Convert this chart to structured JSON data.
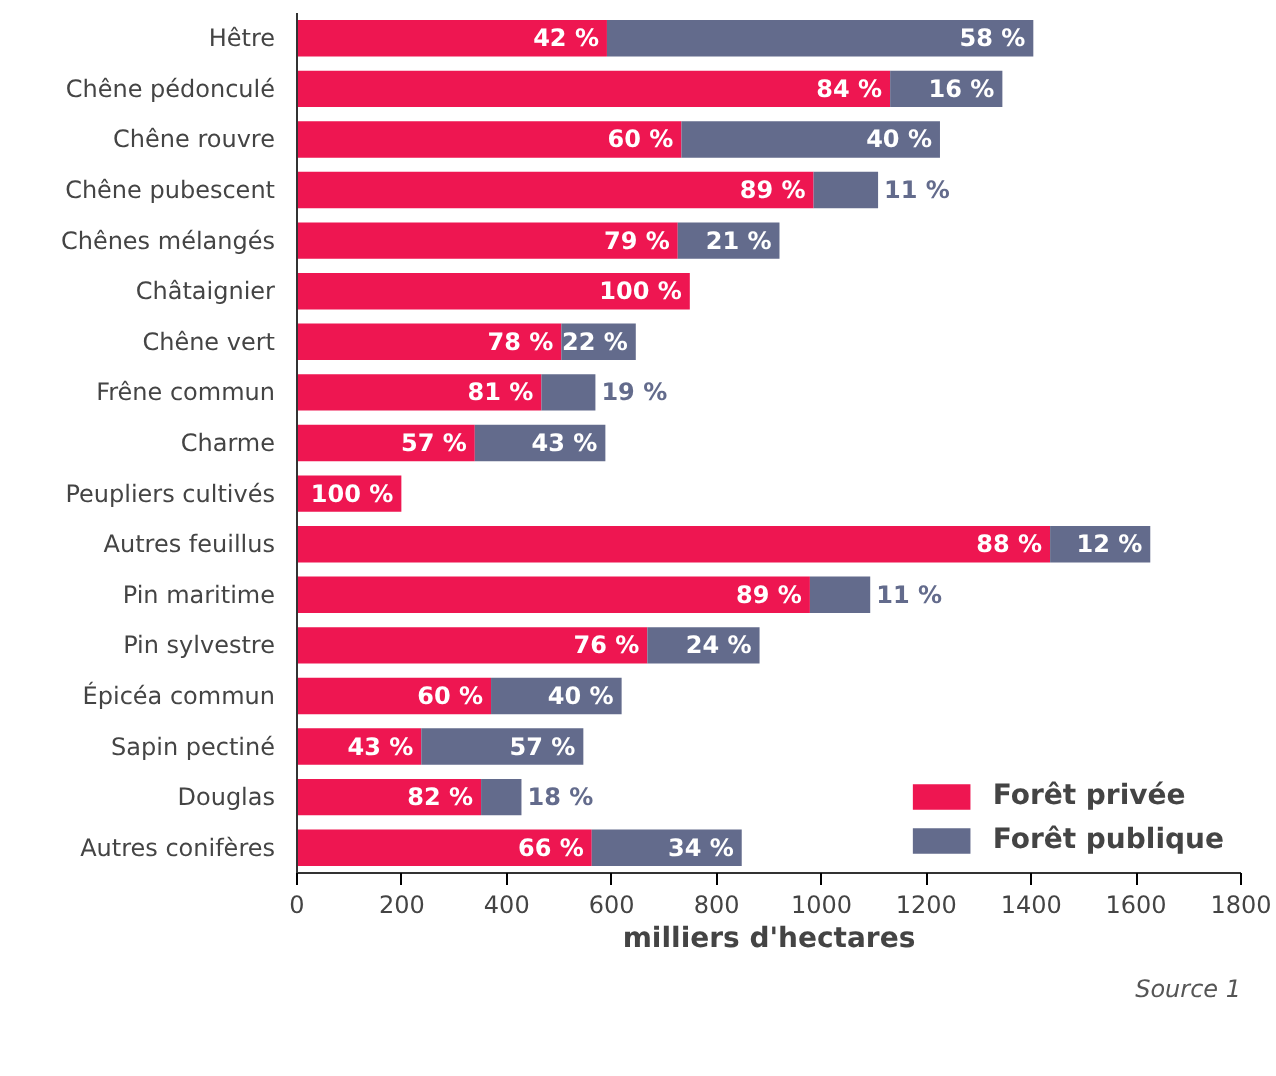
{
  "chart_data": {
    "type": "bar",
    "orientation": "horizontal",
    "stacked": true,
    "categories": [
      "Hêtre",
      "Chêne pédonculé",
      "Chêne rouvre",
      "Chêne pubescent",
      "Chênes mélangés",
      "Châtaignier",
      "Chêne vert",
      "Frêne commun",
      "Charme",
      "Peupliers cultivés",
      "Autres feuillus",
      "Pin maritime",
      "Pin sylvestre",
      "Épicéa commun",
      "Sapin pectiné",
      "Douglas",
      "Autres conifères"
    ],
    "series": [
      {
        "name": "Forêt privée",
        "color": "#ee1651",
        "values": [
          591,
          1131,
          733,
          985,
          726,
          749,
          504,
          466,
          339,
          199,
          1436,
          978,
          668,
          370,
          237,
          351,
          562
        ]
      },
      {
        "name": "Forêt publique",
        "color": "#636b8c",
        "values": [
          813,
          214,
          493,
          123,
          194,
          null,
          142,
          103,
          249,
          null,
          191,
          115,
          214,
          249,
          309,
          77,
          286
        ]
      }
    ],
    "xlim": [
      0,
      1800
    ],
    "xticks": [
      0,
      200,
      400,
      600,
      800,
      1000,
      1200,
      1400,
      1600,
      1800
    ],
    "xlabel": "milliers d'hectares",
    "grid": false,
    "legend": "bottom right",
    "annotations": [
      {
        "text": "42 %",
        "x": 591,
        "y": "Hêtre"
      },
      {
        "text": "58 %",
        "x": 1404,
        "y": "Hêtre"
      },
      {
        "text": "84 %",
        "x": 1131,
        "y": "Chêne pédonculé"
      },
      {
        "text": "16 %",
        "x": 1345,
        "y": "Chêne pédonculé"
      },
      {
        "text": "60 %",
        "x": 733,
        "y": "Chêne rouvre"
      },
      {
        "text": "40 %",
        "x": 1226,
        "y": "Chêne rouvre"
      },
      {
        "text": "89 %",
        "x": 985,
        "y": "Chêne pubescent"
      },
      {
        "text": "11 %",
        "x": 1108,
        "y": "Chêne pubescent"
      },
      {
        "text": "79 %",
        "x": 726,
        "y": "Chênes mélangés"
      },
      {
        "text": "21 %",
        "x": 920,
        "y": "Chênes mélangés"
      },
      {
        "text": "100 %",
        "x": 749,
        "y": "Châtaignier"
      },
      {
        "text": "78 %",
        "x": 504,
        "y": "Chêne vert"
      },
      {
        "text": "22 %",
        "x": 646,
        "y": "Chêne vert"
      },
      {
        "text": "81 %",
        "x": 466,
        "y": "Frêne commun"
      },
      {
        "text": "19 %",
        "x": 569,
        "y": "Frêne commun"
      },
      {
        "text": "57 %",
        "x": 339,
        "y": "Charme"
      },
      {
        "text": "43 %",
        "x": 588,
        "y": "Charme"
      },
      {
        "text": "100 %",
        "x": 199,
        "y": "Peupliers cultivés"
      },
      {
        "text": "88 %",
        "x": 1436,
        "y": "Autres feuillus"
      },
      {
        "text": "12 %",
        "x": 1627,
        "y": "Autres feuillus"
      },
      {
        "text": "89 %",
        "x": 978,
        "y": "Pin maritime"
      },
      {
        "text": "11 %",
        "x": 1093,
        "y": "Pin maritime"
      },
      {
        "text": "76 %",
        "x": 668,
        "y": "Pin sylvestre"
      },
      {
        "text": "24 %",
        "x": 882,
        "y": "Pin sylvestre"
      },
      {
        "text": "60 %",
        "x": 370,
        "y": "Épicéa commun"
      },
      {
        "text": "40 %",
        "x": 619,
        "y": "Épicéa commun"
      },
      {
        "text": "43 %",
        "x": 237,
        "y": "Sapin pectiné"
      },
      {
        "text": "57 %",
        "x": 546,
        "y": "Sapin pectiné"
      },
      {
        "text": "82 %",
        "x": 351,
        "y": "Douglas"
      },
      {
        "text": "18 %",
        "x": 428,
        "y": "Douglas"
      },
      {
        "text": "66 %",
        "x": 562,
        "y": "Autres conifères"
      },
      {
        "text": "34 %",
        "x": 848,
        "y": "Autres conifères"
      },
      "Source 1"
    ]
  }
}
